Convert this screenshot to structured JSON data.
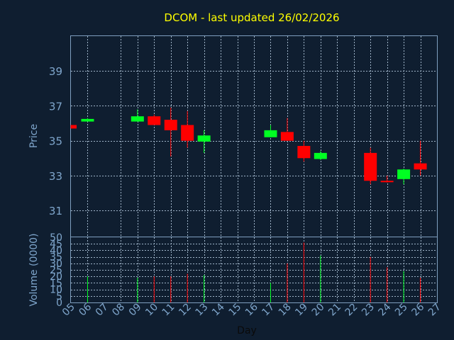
{
  "chart_data": {
    "type": "candlestick",
    "title": "DCOM - last updated 26/02/2026",
    "xlabel": "Day",
    "ylabel_price": "Price",
    "ylabel_volume": "Volume (0000)",
    "price_ylim": [
      29.5,
      41.0
    ],
    "price_ticks": [
      31,
      33,
      35,
      37,
      39
    ],
    "volume_ylim": [
      0,
      50
    ],
    "volume_ticks": [
      0,
      5,
      10,
      15,
      20,
      25,
      30,
      35,
      40,
      45,
      50
    ],
    "x_ticks": [
      "05",
      "06",
      "07",
      "08",
      "09",
      "10",
      "11",
      "12",
      "13",
      "14",
      "15",
      "16",
      "17",
      "18",
      "19",
      "20",
      "21",
      "22",
      "23",
      "24",
      "25",
      "26",
      "27"
    ],
    "grid": true,
    "colors": {
      "up": "#00ff22",
      "down": "#ff0000",
      "grid": "#9fb4c8",
      "frame": "#7f9fbf",
      "title": "#ffff00",
      "axis_text": "#7fa6cc"
    },
    "candles": [
      {
        "day": "05",
        "open": 35.9,
        "high": 35.9,
        "low": 35.7,
        "close": 35.7,
        "volume": 0
      },
      {
        "day": "06",
        "open": 36.1,
        "high": 36.3,
        "low": 36.1,
        "close": 36.25,
        "volume": 20
      },
      {
        "day": "09",
        "open": 36.1,
        "high": 36.8,
        "low": 36.1,
        "close": 36.4,
        "volume": 19
      },
      {
        "day": "10",
        "open": 36.4,
        "high": 36.5,
        "low": 35.9,
        "close": 35.9,
        "volume": 20
      },
      {
        "day": "11",
        "open": 36.2,
        "high": 36.9,
        "low": 34.1,
        "close": 35.6,
        "volume": 20
      },
      {
        "day": "12",
        "open": 35.9,
        "high": 36.7,
        "low": 34.6,
        "close": 35.0,
        "volume": 22
      },
      {
        "day": "13",
        "open": 34.95,
        "high": 35.6,
        "low": 34.3,
        "close": 35.3,
        "volume": 21
      },
      {
        "day": "17",
        "open": 35.2,
        "high": 35.9,
        "low": 35.2,
        "close": 35.6,
        "volume": 15
      },
      {
        "day": "18",
        "open": 35.5,
        "high": 36.3,
        "low": 35.0,
        "close": 35.0,
        "volume": 30
      },
      {
        "day": "19",
        "open": 34.7,
        "high": 35.0,
        "low": 33.8,
        "close": 34.0,
        "volume": 46
      },
      {
        "day": "20",
        "open": 33.95,
        "high": 34.4,
        "low": 33.9,
        "close": 34.3,
        "volume": 36
      },
      {
        "day": "23",
        "open": 34.3,
        "high": 34.6,
        "low": 32.5,
        "close": 32.7,
        "volume": 35
      },
      {
        "day": "24",
        "open": 32.7,
        "high": 33.0,
        "low": 32.6,
        "close": 32.65,
        "volume": 27
      },
      {
        "day": "25",
        "open": 32.8,
        "high": 33.4,
        "low": 32.5,
        "close": 33.35,
        "volume": 24
      },
      {
        "day": "26",
        "open": 33.7,
        "high": 35.0,
        "low": 33.0,
        "close": 33.35,
        "volume": 19
      }
    ]
  }
}
